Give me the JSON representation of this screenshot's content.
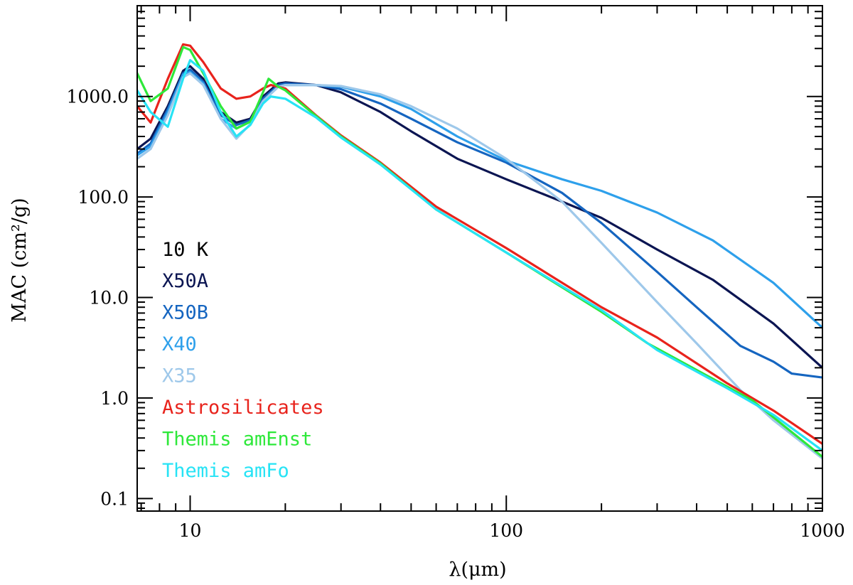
{
  "chart_data": {
    "type": "line",
    "xscale": "log",
    "yscale": "log",
    "xlabel": "λ(μm)",
    "ylabel": "MAC (cm²/g)",
    "xlim": [
      6.8,
      1000
    ],
    "ylim": [
      0.075,
      8000
    ],
    "xticks": [
      {
        "value": 10,
        "label": "10"
      },
      {
        "value": 100,
        "label": "100"
      },
      {
        "value": 1000,
        "label": "1000"
      }
    ],
    "yticks": [
      {
        "value": 0.1,
        "label": "0.1"
      },
      {
        "value": 1,
        "label": "1.0"
      },
      {
        "value": 10,
        "label": "10.0"
      },
      {
        "value": 100,
        "label": "100.0"
      },
      {
        "value": 1000,
        "label": "1000.0"
      }
    ],
    "legend_title": "10 K",
    "legend_position": "lower-left",
    "series": [
      {
        "name": "X50A",
        "color": "#0b1552",
        "points": [
          [
            6.8,
            300
          ],
          [
            7.5,
            380
          ],
          [
            8.5,
            800
          ],
          [
            9.5,
            1800
          ],
          [
            10,
            2000
          ],
          [
            11,
            1500
          ],
          [
            12.5,
            700
          ],
          [
            14,
            550
          ],
          [
            15.5,
            600
          ],
          [
            17,
            1000
          ],
          [
            19,
            1350
          ],
          [
            20,
            1380
          ],
          [
            25,
            1300
          ],
          [
            30,
            1100
          ],
          [
            40,
            700
          ],
          [
            50,
            450
          ],
          [
            70,
            240
          ],
          [
            100,
            150
          ],
          [
            150,
            90
          ],
          [
            200,
            62
          ],
          [
            300,
            30
          ],
          [
            450,
            15
          ],
          [
            700,
            5.5
          ],
          [
            1000,
            2
          ]
        ]
      },
      {
        "name": "X50B",
        "color": "#1565c0",
        "points": [
          [
            6.8,
            270
          ],
          [
            7.5,
            340
          ],
          [
            8.5,
            750
          ],
          [
            9.5,
            1700
          ],
          [
            10,
            1850
          ],
          [
            11,
            1400
          ],
          [
            12.5,
            650
          ],
          [
            14,
            520
          ],
          [
            15.5,
            580
          ],
          [
            17,
            950
          ],
          [
            19,
            1300
          ],
          [
            20,
            1350
          ],
          [
            25,
            1300
          ],
          [
            30,
            1180
          ],
          [
            40,
            850
          ],
          [
            50,
            600
          ],
          [
            70,
            350
          ],
          [
            100,
            220
          ],
          [
            150,
            110
          ],
          [
            200,
            55
          ],
          [
            300,
            18
          ],
          [
            400,
            8
          ],
          [
            550,
            3.3
          ],
          [
            700,
            2.3
          ],
          [
            800,
            1.75
          ],
          [
            1000,
            1.6
          ]
        ]
      },
      {
        "name": "X40",
        "color": "#2ea0eb",
        "points": [
          [
            6.8,
            260
          ],
          [
            7.5,
            320
          ],
          [
            8.5,
            700
          ],
          [
            9.5,
            1650
          ],
          [
            10,
            1750
          ],
          [
            11,
            1350
          ],
          [
            12.5,
            600
          ],
          [
            14,
            480
          ],
          [
            15.5,
            560
          ],
          [
            17,
            900
          ],
          [
            19,
            1250
          ],
          [
            20,
            1300
          ],
          [
            25,
            1300
          ],
          [
            30,
            1250
          ],
          [
            40,
            1000
          ],
          [
            50,
            750
          ],
          [
            70,
            400
          ],
          [
            100,
            230
          ],
          [
            150,
            150
          ],
          [
            200,
            115
          ],
          [
            300,
            70
          ],
          [
            450,
            37
          ],
          [
            700,
            14
          ],
          [
            1000,
            5
          ]
        ]
      },
      {
        "name": "X35",
        "color": "#9ec8ea",
        "points": [
          [
            6.8,
            240
          ],
          [
            7.5,
            300
          ],
          [
            8.5,
            650
          ],
          [
            9.5,
            1550
          ],
          [
            10,
            1700
          ],
          [
            11,
            1300
          ],
          [
            12.5,
            600
          ],
          [
            14,
            380
          ],
          [
            15.5,
            530
          ],
          [
            17,
            900
          ],
          [
            19,
            1250
          ],
          [
            20,
            1300
          ],
          [
            25,
            1300
          ],
          [
            30,
            1270
          ],
          [
            40,
            1050
          ],
          [
            50,
            800
          ],
          [
            70,
            480
          ],
          [
            100,
            240
          ],
          [
            150,
            90
          ],
          [
            200,
            35
          ],
          [
            300,
            9
          ],
          [
            400,
            3.5
          ],
          [
            550,
            1.2
          ],
          [
            700,
            0.6
          ],
          [
            1000,
            0.25
          ]
        ]
      },
      {
        "name": "Astrosilicates",
        "color": "#e8231c",
        "points": [
          [
            6.8,
            800
          ],
          [
            7.5,
            550
          ],
          [
            8.5,
            1500
          ],
          [
            9.5,
            3300
          ],
          [
            10,
            3200
          ],
          [
            11,
            2200
          ],
          [
            12.5,
            1200
          ],
          [
            14,
            950
          ],
          [
            15.5,
            1000
          ],
          [
            17,
            1200
          ],
          [
            18,
            1300
          ],
          [
            20,
            1200
          ],
          [
            25,
            650
          ],
          [
            30,
            410
          ],
          [
            40,
            220
          ],
          [
            60,
            80
          ],
          [
            100,
            31
          ],
          [
            200,
            8
          ],
          [
            300,
            4
          ],
          [
            500,
            1.4
          ],
          [
            700,
            0.75
          ],
          [
            1000,
            0.35
          ]
        ]
      },
      {
        "name": "Themis amEnst",
        "color": "#2ee83a",
        "points": [
          [
            6.8,
            1700
          ],
          [
            7.5,
            900
          ],
          [
            8.5,
            1200
          ],
          [
            9.5,
            3100
          ],
          [
            10,
            2900
          ],
          [
            11,
            1700
          ],
          [
            12.5,
            800
          ],
          [
            14,
            480
          ],
          [
            15.5,
            560
          ],
          [
            17,
            1100
          ],
          [
            17.7,
            1500
          ],
          [
            19,
            1250
          ],
          [
            20,
            1150
          ],
          [
            25,
            640
          ],
          [
            30,
            400
          ],
          [
            40,
            215
          ],
          [
            60,
            75
          ],
          [
            100,
            28
          ],
          [
            200,
            7.2
          ],
          [
            280,
            3.5
          ],
          [
            400,
            1.9
          ],
          [
            600,
            0.95
          ],
          [
            1000,
            0.26
          ]
        ]
      },
      {
        "name": "Themis amFo",
        "color": "#27e3f5",
        "points": [
          [
            6.8,
            1150
          ],
          [
            7.5,
            700
          ],
          [
            8.5,
            500
          ],
          [
            9.5,
            1500
          ],
          [
            10,
            2300
          ],
          [
            11,
            1800
          ],
          [
            12.5,
            700
          ],
          [
            14,
            400
          ],
          [
            15.5,
            520
          ],
          [
            17,
            850
          ],
          [
            18,
            1000
          ],
          [
            20,
            950
          ],
          [
            25,
            620
          ],
          [
            30,
            390
          ],
          [
            40,
            210
          ],
          [
            60,
            75
          ],
          [
            100,
            28
          ],
          [
            200,
            7.5
          ],
          [
            300,
            3
          ],
          [
            500,
            1.25
          ],
          [
            700,
            0.68
          ],
          [
            1000,
            0.3
          ]
        ]
      }
    ]
  }
}
